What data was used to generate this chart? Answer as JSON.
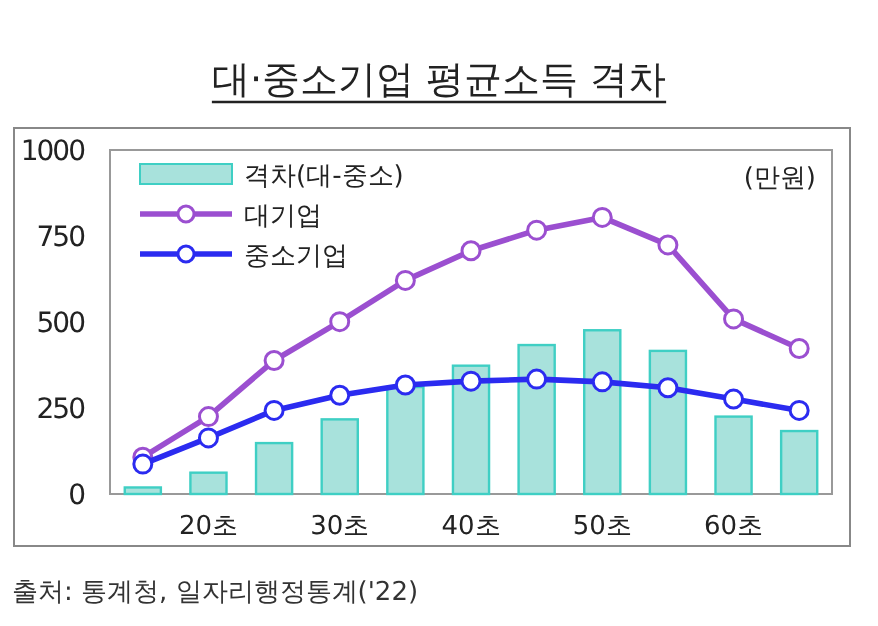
{
  "chart_data": {
    "type": "bar",
    "title": "대·중소기업 평균소득 격차",
    "categories": [
      null,
      "20초",
      null,
      "30초",
      null,
      "40초",
      null,
      "50초",
      null,
      "60초",
      null
    ],
    "series": [
      {
        "name": "격차(대-중소)",
        "color": "#a8e2dc",
        "values": [
          19,
          62,
          148,
          217,
          311,
          373,
          433,
          476,
          416,
          225,
          183
        ]
      },
      {
        "name": "대기업",
        "type": "line",
        "color": "#9b4fd0",
        "values": [
          107,
          225,
          388,
          501,
          621,
          707,
          767,
          804,
          724,
          509,
          423
        ]
      },
      {
        "name": "중소기업",
        "type": "line",
        "color": "#2b2bf0",
        "values": [
          87,
          163,
          243,
          287,
          317,
          328,
          334,
          326,
          309,
          276,
          243
        ]
      }
    ],
    "ylim": [
      0,
      1000
    ],
    "yticks": [
      0,
      250,
      500,
      750,
      1000
    ],
    "grid": false,
    "legend": "top left",
    "marker": "circle",
    "annotations": [
      "(만원)",
      "출처: 통계청, 일자리행정통계('22)"
    ]
  }
}
